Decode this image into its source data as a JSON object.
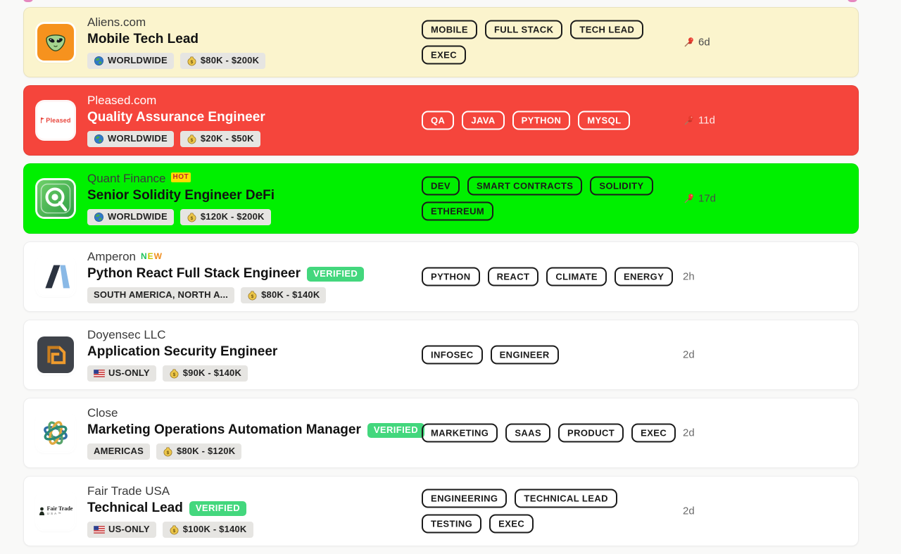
{
  "page": {
    "background": "#f9f9f8",
    "accent_dash_color": "#e06ab0"
  },
  "labels": {
    "verified": "VERIFIED",
    "hot": "HOT",
    "new": "NEW"
  },
  "colors": {
    "highlight_yellow": "#fbf4cd",
    "highlight_red": "#f5453c",
    "highlight_green": "#00f000",
    "card_white": "#ffffff",
    "verified_green": "#43d77d",
    "tag_border_dark": "#1b1b1b",
    "tag_border_light": "#ffffff",
    "new_letter_colors": [
      "#1fc35c",
      "#c9c400",
      "#f08c1b"
    ]
  },
  "jobs": [
    {
      "company": "Aliens.com",
      "company_badge": null,
      "title": "Mobile Tech Lead",
      "verified": false,
      "pills": [
        {
          "icon": "globe",
          "label": "WORLDWIDE"
        },
        {
          "icon": "money",
          "label": "$80K - $200K"
        }
      ],
      "tags": [
        "MOBILE",
        "FULL STACK",
        "TECH LEAD",
        "EXEC"
      ],
      "time": "6d",
      "pinned": true,
      "highlight": "#fbf4cd",
      "theme": "dark",
      "logo": "alien"
    },
    {
      "company": "Pleased.com",
      "company_badge": null,
      "title": "Quality Assurance Engineer",
      "verified": false,
      "pills": [
        {
          "icon": "globe",
          "label": "WORLDWIDE"
        },
        {
          "icon": "money",
          "label": "$20K - $50K"
        }
      ],
      "tags": [
        "QA",
        "JAVA",
        "PYTHON",
        "MYSQL"
      ],
      "time": "11d",
      "pinned": true,
      "highlight": "#f5453c",
      "theme": "light",
      "logo": "pleased"
    },
    {
      "company": "Quant Finance",
      "company_badge": "HOT",
      "title": "Senior Solidity Engineer DeFi",
      "verified": false,
      "pills": [
        {
          "icon": "globe",
          "label": "WORLDWIDE"
        },
        {
          "icon": "money",
          "label": "$120K - $200K"
        }
      ],
      "tags": [
        "DEV",
        "SMART CONTRACTS",
        "SOLIDITY",
        "ETHEREUM"
      ],
      "time": "17d",
      "pinned": true,
      "highlight": "#00f000",
      "theme": "dark",
      "logo": "quant"
    },
    {
      "company": "Amperon",
      "company_badge": "NEW",
      "title": "Python React Full Stack Engineer",
      "verified": true,
      "pills": [
        {
          "icon": null,
          "label": "SOUTH AMERICA, NORTH A..."
        },
        {
          "icon": "money",
          "label": "$80K - $140K"
        }
      ],
      "tags": [
        "PYTHON",
        "REACT",
        "CLIMATE",
        "ENERGY"
      ],
      "time": "2h",
      "pinned": false,
      "highlight": "#ffffff",
      "theme": "dark",
      "logo": "amperon"
    },
    {
      "company": "Doyensec LLC",
      "company_badge": null,
      "title": "Application Security Engineer",
      "verified": false,
      "pills": [
        {
          "icon": "flag",
          "label": "US-ONLY"
        },
        {
          "icon": "money",
          "label": "$90K - $140K"
        }
      ],
      "tags": [
        "INFOSEC",
        "ENGINEER"
      ],
      "time": "2d",
      "pinned": false,
      "highlight": "#ffffff",
      "theme": "dark",
      "logo": "doyensec"
    },
    {
      "company": "Close",
      "company_badge": null,
      "title": "Marketing Operations Automation Manager",
      "verified": true,
      "pills": [
        {
          "icon": null,
          "label": "AMERICAS"
        },
        {
          "icon": "money",
          "label": "$80K - $120K"
        }
      ],
      "tags": [
        "MARKETING",
        "SAAS",
        "PRODUCT",
        "EXEC"
      ],
      "time": "2d",
      "pinned": false,
      "highlight": "#ffffff",
      "theme": "dark",
      "logo": "close"
    },
    {
      "company": "Fair Trade USA",
      "company_badge": null,
      "title": "Technical Lead",
      "verified": true,
      "pills": [
        {
          "icon": "flag",
          "label": "US-ONLY"
        },
        {
          "icon": "money",
          "label": "$100K - $140K"
        }
      ],
      "tags": [
        "ENGINEERING",
        "TECHNICAL LEAD",
        "TESTING",
        "EXEC"
      ],
      "time": "2d",
      "pinned": false,
      "highlight": "#ffffff",
      "theme": "dark",
      "logo": "fairtrade"
    }
  ]
}
